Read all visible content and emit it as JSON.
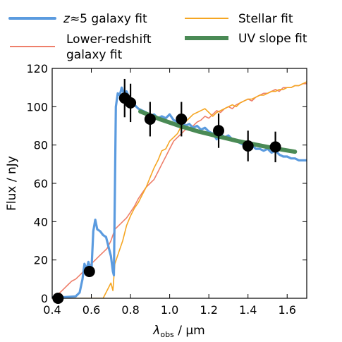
{
  "chart_data": {
    "type": "line",
    "xlabel": "λobs / μm",
    "xlabel_main": "λ",
    "xlabel_sub": "obs",
    "xlabel_unit": " / μm",
    "ylabel": "Flux / nJy",
    "xlim": [
      0.4,
      1.7
    ],
    "ylim": [
      0,
      120
    ],
    "xticks": [
      0.4,
      0.6,
      0.8,
      1.0,
      1.2,
      1.4,
      1.6
    ],
    "yticks": [
      0,
      20,
      40,
      60,
      80,
      100,
      120
    ],
    "xtick_labels": [
      "0.4",
      "0.6",
      "0.8",
      "1.0",
      "1.2",
      "1.4",
      "1.6"
    ],
    "ytick_labels": [
      "0",
      "20",
      "40",
      "60",
      "80",
      "100",
      "120"
    ],
    "grid": false,
    "legend_placement": "top, above plot, two columns",
    "legend": [
      {
        "key": "z5",
        "label_html": "z≈5 galaxy fit",
        "label_prefix": "z",
        "label_suffix": "≈5 galaxy fit"
      },
      {
        "key": "lowz",
        "label_line1": "Lower-redshift",
        "label_line2": "galaxy fit"
      },
      {
        "key": "stellar",
        "label": "Stellar fit"
      },
      {
        "key": "uv",
        "label": "UV slope fit"
      }
    ],
    "series": [
      {
        "name": "z≈5 galaxy fit",
        "key": "z5",
        "color": "#5b9bdf",
        "style": "line",
        "points": [
          [
            0.4,
            0.5
          ],
          [
            0.45,
            0.5
          ],
          [
            0.52,
            1
          ],
          [
            0.54,
            3
          ],
          [
            0.555,
            10
          ],
          [
            0.565,
            18
          ],
          [
            0.575,
            15
          ],
          [
            0.585,
            19
          ],
          [
            0.6,
            13
          ],
          [
            0.61,
            35
          ],
          [
            0.62,
            41
          ],
          [
            0.63,
            36
          ],
          [
            0.645,
            35
          ],
          [
            0.66,
            33
          ],
          [
            0.675,
            32
          ],
          [
            0.69,
            26
          ],
          [
            0.7,
            22
          ],
          [
            0.71,
            14
          ],
          [
            0.715,
            12
          ],
          [
            0.72,
            55
          ],
          [
            0.725,
            100
          ],
          [
            0.735,
            107
          ],
          [
            0.745,
            106
          ],
          [
            0.755,
            110
          ],
          [
            0.765,
            107
          ],
          [
            0.78,
            108
          ],
          [
            0.8,
            103
          ],
          [
            0.82,
            101
          ],
          [
            0.84,
            99
          ],
          [
            0.86,
            98
          ],
          [
            0.88,
            97
          ],
          [
            0.9,
            95
          ],
          [
            0.92,
            96
          ],
          [
            0.94,
            94
          ],
          [
            0.96,
            95
          ],
          [
            0.98,
            94
          ],
          [
            1.0,
            96
          ],
          [
            1.02,
            93
          ],
          [
            1.04,
            92
          ],
          [
            1.06,
            93
          ],
          [
            1.08,
            90
          ],
          [
            1.1,
            91
          ],
          [
            1.12,
            89
          ],
          [
            1.14,
            90
          ],
          [
            1.16,
            88
          ],
          [
            1.18,
            89
          ],
          [
            1.2,
            87
          ],
          [
            1.22,
            86
          ],
          [
            1.24,
            83
          ],
          [
            1.26,
            86
          ],
          [
            1.28,
            84
          ],
          [
            1.3,
            85
          ],
          [
            1.32,
            83
          ],
          [
            1.34,
            82
          ],
          [
            1.36,
            81
          ],
          [
            1.38,
            80
          ],
          [
            1.4,
            79
          ],
          [
            1.42,
            80
          ],
          [
            1.44,
            78
          ],
          [
            1.46,
            78
          ],
          [
            1.48,
            77
          ],
          [
            1.5,
            78
          ],
          [
            1.52,
            76
          ],
          [
            1.54,
            77
          ],
          [
            1.56,
            75
          ],
          [
            1.58,
            74
          ],
          [
            1.6,
            74
          ],
          [
            1.62,
            73
          ],
          [
            1.64,
            73
          ],
          [
            1.66,
            72
          ],
          [
            1.68,
            72
          ],
          [
            1.7,
            72
          ]
        ]
      },
      {
        "name": "Lower-redshift galaxy fit",
        "key": "lowz",
        "color": "#ee7f6b",
        "style": "line",
        "points": [
          [
            0.4,
            0
          ],
          [
            0.42,
            1
          ],
          [
            0.44,
            3
          ],
          [
            0.46,
            5
          ],
          [
            0.48,
            7
          ],
          [
            0.5,
            9
          ],
          [
            0.52,
            10
          ],
          [
            0.54,
            12
          ],
          [
            0.56,
            14
          ],
          [
            0.58,
            16
          ],
          [
            0.6,
            18
          ],
          [
            0.62,
            20
          ],
          [
            0.64,
            22
          ],
          [
            0.66,
            24
          ],
          [
            0.68,
            26
          ],
          [
            0.7,
            30
          ],
          [
            0.72,
            36
          ],
          [
            0.74,
            38
          ],
          [
            0.76,
            40
          ],
          [
            0.78,
            42
          ],
          [
            0.8,
            45
          ],
          [
            0.82,
            48
          ],
          [
            0.84,
            52
          ],
          [
            0.86,
            55
          ],
          [
            0.88,
            58
          ],
          [
            0.9,
            60
          ],
          [
            0.92,
            62
          ],
          [
            0.94,
            66
          ],
          [
            0.96,
            70
          ],
          [
            0.98,
            74
          ],
          [
            1.0,
            78
          ],
          [
            1.02,
            82
          ],
          [
            1.04,
            84
          ],
          [
            1.06,
            86
          ],
          [
            1.08,
            88
          ],
          [
            1.1,
            89
          ],
          [
            1.12,
            90
          ],
          [
            1.14,
            92
          ],
          [
            1.16,
            93
          ],
          [
            1.18,
            95
          ],
          [
            1.2,
            94
          ],
          [
            1.22,
            96
          ],
          [
            1.24,
            98
          ],
          [
            1.26,
            97
          ],
          [
            1.28,
            99
          ],
          [
            1.3,
            100
          ],
          [
            1.32,
            99
          ],
          [
            1.34,
            101
          ],
          [
            1.36,
            102
          ],
          [
            1.38,
            103
          ],
          [
            1.4,
            104
          ],
          [
            1.42,
            103
          ],
          [
            1.44,
            105
          ],
          [
            1.46,
            106
          ],
          [
            1.48,
            107
          ],
          [
            1.5,
            107
          ],
          [
            1.52,
            108
          ],
          [
            1.54,
            109
          ],
          [
            1.56,
            108
          ],
          [
            1.58,
            110
          ],
          [
            1.6,
            110
          ],
          [
            1.62,
            110
          ],
          [
            1.64,
            111
          ],
          [
            1.66,
            111
          ],
          [
            1.68,
            112
          ],
          [
            1.7,
            112
          ]
        ]
      },
      {
        "name": "Stellar fit",
        "key": "stellar",
        "color": "#f5a623",
        "style": "line",
        "points": [
          [
            0.4,
            0
          ],
          [
            0.5,
            0
          ],
          [
            0.64,
            0
          ],
          [
            0.66,
            0
          ],
          [
            0.68,
            4
          ],
          [
            0.7,
            8
          ],
          [
            0.71,
            4
          ],
          [
            0.72,
            18
          ],
          [
            0.74,
            24
          ],
          [
            0.76,
            30
          ],
          [
            0.78,
            38
          ],
          [
            0.8,
            43
          ],
          [
            0.82,
            47
          ],
          [
            0.84,
            50
          ],
          [
            0.86,
            54
          ],
          [
            0.88,
            58
          ],
          [
            0.9,
            63
          ],
          [
            0.92,
            68
          ],
          [
            0.94,
            72
          ],
          [
            0.96,
            77
          ],
          [
            0.98,
            78
          ],
          [
            1.0,
            82
          ],
          [
            1.02,
            84
          ],
          [
            1.04,
            86
          ],
          [
            1.06,
            90
          ],
          [
            1.08,
            92
          ],
          [
            1.1,
            94
          ],
          [
            1.12,
            96
          ],
          [
            1.14,
            97
          ],
          [
            1.16,
            98
          ],
          [
            1.18,
            99
          ],
          [
            1.2,
            97
          ],
          [
            1.22,
            95
          ],
          [
            1.24,
            97
          ],
          [
            1.26,
            98
          ],
          [
            1.28,
            99
          ],
          [
            1.3,
            100
          ],
          [
            1.32,
            101
          ],
          [
            1.34,
            100
          ],
          [
            1.36,
            102
          ],
          [
            1.38,
            103
          ],
          [
            1.4,
            104
          ],
          [
            1.42,
            104
          ],
          [
            1.44,
            105
          ],
          [
            1.46,
            106
          ],
          [
            1.48,
            106
          ],
          [
            1.5,
            107
          ],
          [
            1.52,
            108
          ],
          [
            1.54,
            108
          ],
          [
            1.56,
            109
          ],
          [
            1.58,
            109
          ],
          [
            1.6,
            110
          ],
          [
            1.62,
            110
          ],
          [
            1.64,
            111
          ],
          [
            1.66,
            111
          ],
          [
            1.68,
            112
          ],
          [
            1.7,
            113
          ]
        ]
      },
      {
        "name": "UV slope fit",
        "key": "uv",
        "color": "#4a8a55",
        "style": "thick-line",
        "points": [
          [
            0.85,
            97.5
          ],
          [
            0.95,
            93.5
          ],
          [
            1.05,
            90
          ],
          [
            1.15,
            87
          ],
          [
            1.25,
            84.5
          ],
          [
            1.35,
            82
          ],
          [
            1.45,
            80
          ],
          [
            1.55,
            78
          ],
          [
            1.64,
            76.5
          ]
        ]
      }
    ],
    "observations": {
      "name": "data points",
      "color": "#000000",
      "points": [
        {
          "x": 0.43,
          "y": 0,
          "err": 0
        },
        {
          "x": 0.59,
          "y": 14,
          "err": 0
        },
        {
          "x": 0.77,
          "y": 104.5,
          "err": 10
        },
        {
          "x": 0.8,
          "y": 102,
          "err": 10
        },
        {
          "x": 0.9,
          "y": 93.5,
          "err": 9
        },
        {
          "x": 1.06,
          "y": 93.5,
          "err": 9
        },
        {
          "x": 1.25,
          "y": 87.5,
          "err": 9
        },
        {
          "x": 1.4,
          "y": 79.5,
          "err": 8
        },
        {
          "x": 1.54,
          "y": 79,
          "err": 8
        }
      ]
    }
  }
}
